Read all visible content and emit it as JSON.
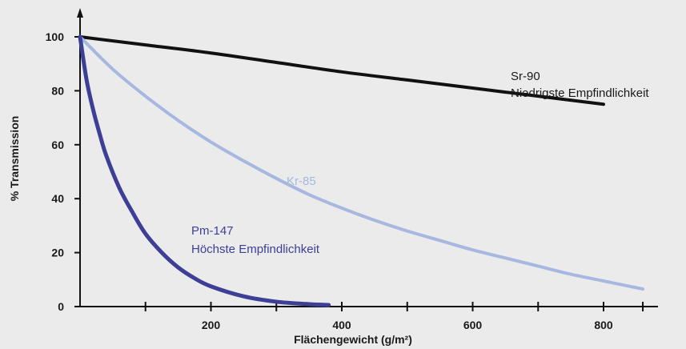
{
  "chart_data": {
    "type": "line",
    "xlabel": "Flächengewicht (g/m²)",
    "ylabel": "% Transmission",
    "xlim": [
      0,
      860
    ],
    "ylim": [
      0,
      100
    ],
    "xticks": [
      200,
      400,
      600,
      800
    ],
    "yticks": [
      0,
      20,
      40,
      60,
      80,
      100
    ],
    "grid": false,
    "series": [
      {
        "name": "Sr-90",
        "color": "#111111",
        "x": [
          0,
          100,
          200,
          300,
          400,
          500,
          600,
          700,
          800
        ],
        "y": [
          100,
          97,
          94,
          90.5,
          87,
          84,
          81,
          78,
          75
        ]
      },
      {
        "name": "Kr-85",
        "color": "#a6b8df",
        "x": [
          0,
          50,
          100,
          150,
          200,
          250,
          300,
          350,
          400,
          450,
          500,
          550,
          600,
          650,
          700,
          750,
          800,
          860
        ],
        "y": [
          100,
          88,
          78,
          69,
          61,
          54,
          47.5,
          41.5,
          36.5,
          32,
          28,
          24.5,
          21,
          18,
          15,
          12,
          9.5,
          6.5
        ]
      },
      {
        "name": "Pm-147",
        "color": "#3d3f96",
        "x": [
          0,
          10,
          20,
          30,
          40,
          60,
          80,
          100,
          125,
          150,
          175,
          200,
          250,
          300,
          350,
          380
        ],
        "y": [
          100,
          84,
          73,
          64,
          56,
          44,
          35,
          27,
          20,
          14.5,
          10.5,
          7.5,
          3.8,
          1.8,
          0.9,
          0.6
        ]
      }
    ],
    "annotations": [
      {
        "id": "sr90-name",
        "text": "Sr-90",
        "color": "#1a1a1a"
      },
      {
        "id": "sr90-desc",
        "text": "Niedrigste Empfindlichkeit",
        "color": "#1a1a1a"
      },
      {
        "id": "kr85-name",
        "text": "Kr-85",
        "color": "#a6b8df"
      },
      {
        "id": "pm147-name",
        "text": "Pm-147",
        "color": "#3d3f96"
      },
      {
        "id": "pm147-desc",
        "text": "Höchste Empfindlichkeit",
        "color": "#3d3f96"
      }
    ]
  }
}
